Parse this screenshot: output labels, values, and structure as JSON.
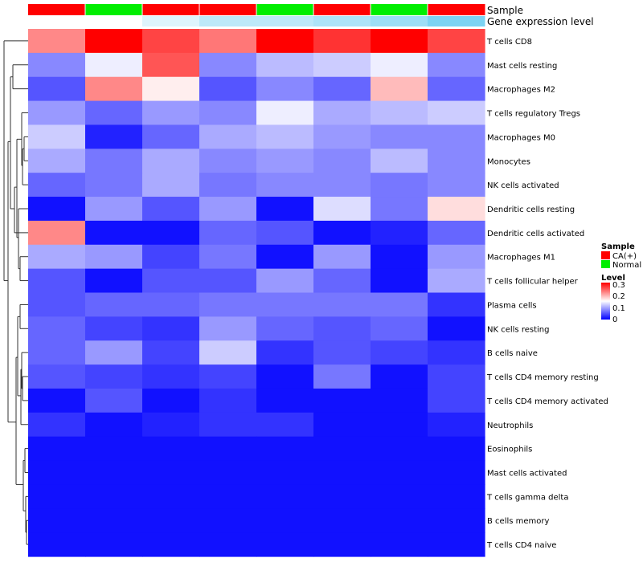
{
  "chart_data": {
    "type": "heatmap",
    "annotation_rows": [
      "Sample",
      "Gene expression level"
    ],
    "sample_groups": [
      "CA(+)",
      "Normal",
      "CA(+)",
      "CA(+)",
      "Normal",
      "CA(+)",
      "Normal",
      "CA(+)"
    ],
    "gene_expression_levels": [
      0.0,
      0.0,
      0.2,
      0.4,
      0.4,
      0.5,
      0.6,
      0.8
    ],
    "rows": [
      "T cells CD8",
      "Mast cells resting",
      "Macrophages M2",
      "T cells regulatory  Tregs",
      "Macrophages M0",
      "Monocytes",
      "NK cells activated",
      "Dendritic cells resting",
      "Dendritic cells activated",
      "Macrophages M1",
      "T cells follicular helper",
      "Plasma cells",
      "NK cells resting",
      "B cells naive",
      "T cells CD4 memory resting",
      "T cells CD4 memory activated",
      "Neutrophils",
      "Eosinophils",
      "Mast cells activated",
      "T cells gamma delta",
      "B cells memory",
      "T cells CD4 naive"
    ],
    "values": [
      [
        0.22,
        0.3,
        0.26,
        0.23,
        0.3,
        0.27,
        0.3,
        0.26
      ],
      [
        0.08,
        0.14,
        0.25,
        0.08,
        0.11,
        0.12,
        0.14,
        0.08
      ],
      [
        0.05,
        0.22,
        0.16,
        0.05,
        0.08,
        0.06,
        0.19,
        0.06
      ],
      [
        0.09,
        0.06,
        0.09,
        0.08,
        0.14,
        0.1,
        0.11,
        0.12
      ],
      [
        0.12,
        0.02,
        0.06,
        0.1,
        0.11,
        0.09,
        0.08,
        0.08
      ],
      [
        0.1,
        0.07,
        0.1,
        0.08,
        0.09,
        0.08,
        0.11,
        0.08
      ],
      [
        0.06,
        0.07,
        0.1,
        0.07,
        0.08,
        0.08,
        0.07,
        0.08
      ],
      [
        0.01,
        0.09,
        0.05,
        0.09,
        0.01,
        0.13,
        0.07,
        0.17
      ],
      [
        0.22,
        0.01,
        0.01,
        0.06,
        0.05,
        0.01,
        0.02,
        0.06
      ],
      [
        0.1,
        0.09,
        0.04,
        0.07,
        0.01,
        0.09,
        0.01,
        0.09
      ],
      [
        0.05,
        0.01,
        0.05,
        0.05,
        0.09,
        0.06,
        0.01,
        0.1
      ],
      [
        0.05,
        0.06,
        0.06,
        0.07,
        0.07,
        0.07,
        0.07,
        0.03
      ],
      [
        0.06,
        0.04,
        0.03,
        0.09,
        0.06,
        0.05,
        0.06,
        0.01
      ],
      [
        0.06,
        0.09,
        0.04,
        0.12,
        0.03,
        0.05,
        0.04,
        0.03
      ],
      [
        0.05,
        0.04,
        0.03,
        0.04,
        0.01,
        0.07,
        0.01,
        0.04
      ],
      [
        0.01,
        0.05,
        0.01,
        0.03,
        0.01,
        0.01,
        0.01,
        0.04
      ],
      [
        0.03,
        0.01,
        0.02,
        0.03,
        0.03,
        0.01,
        0.01,
        0.02
      ],
      [
        0.01,
        0.01,
        0.01,
        0.01,
        0.01,
        0.01,
        0.01,
        0.01
      ],
      [
        0.01,
        0.01,
        0.01,
        0.01,
        0.01,
        0.01,
        0.01,
        0.01
      ],
      [
        0.01,
        0.01,
        0.01,
        0.01,
        0.01,
        0.01,
        0.01,
        0.01
      ],
      [
        0.01,
        0.01,
        0.01,
        0.01,
        0.01,
        0.01,
        0.01,
        0.01
      ],
      [
        0.01,
        0.01,
        0.01,
        0.01,
        0.01,
        0.01,
        0.01,
        0.01
      ]
    ],
    "legend": {
      "sample_title": "Sample",
      "sample_entries": [
        {
          "label": "CA(+)",
          "color": "#ff0000"
        },
        {
          "label": "Normal",
          "color": "#00ee00"
        }
      ],
      "level_title": "Level",
      "level_ticks": [
        "0.3",
        "0.2",
        "0.1",
        "0"
      ],
      "level_range": [
        0,
        0.3
      ]
    },
    "colors": {
      "low": "#0000ff",
      "mid": "#ffffff",
      "high": "#ff0000",
      "expr_low": "#ffffff",
      "expr_high": "#5bc8f0"
    }
  }
}
